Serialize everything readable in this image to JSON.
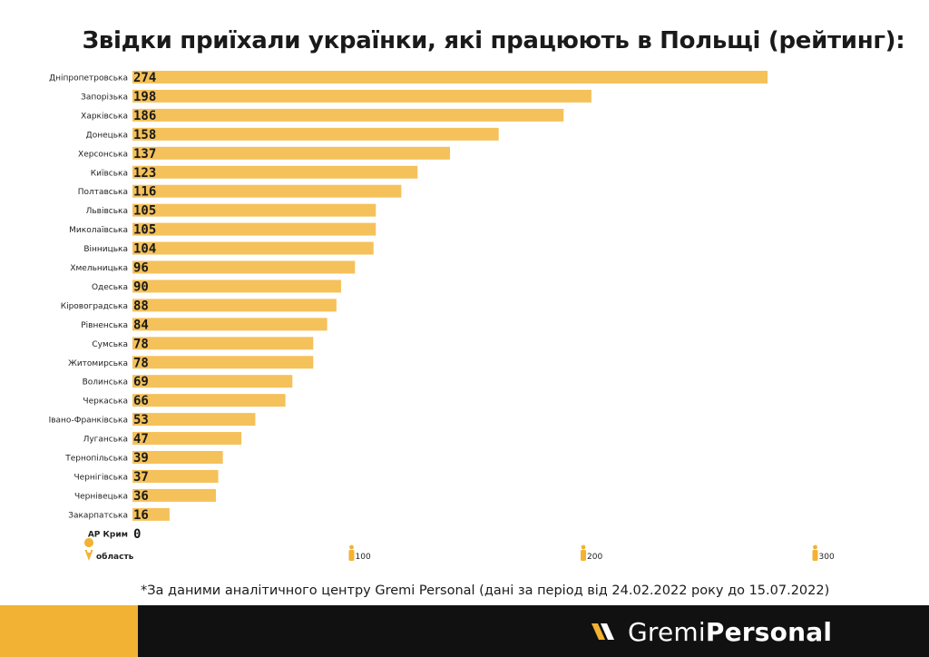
{
  "title": "Звідки приїхали українки, які працюють в Польщі (рейтинг):",
  "chart_data": {
    "type": "bar",
    "orientation": "horizontal",
    "categories": [
      "Дніпропетровська",
      "Запорізька",
      "Харківська",
      "Донецька",
      "Херсонська",
      "Київська",
      "Полтавська",
      "Львівська",
      "Миколаївська",
      "Вінницька",
      "Хмельницька",
      "Одеська",
      "Кіровоградська",
      "Рівненська",
      "Сумська",
      "Житомирська",
      "Волинська",
      "Черкаська",
      "Івано-Франківська",
      "Луганська",
      "Тернопільська",
      "Чернігівська",
      "Чернівецька",
      "Закарпатська",
      "АР Крим"
    ],
    "values": [
      274,
      198,
      186,
      158,
      137,
      123,
      116,
      105,
      105,
      104,
      96,
      90,
      88,
      84,
      78,
      78,
      69,
      66,
      53,
      47,
      39,
      37,
      36,
      16,
      0
    ],
    "xlim": [
      0,
      300
    ],
    "ticks": [
      "100",
      "200",
      "300"
    ],
    "category_axis_label": "область",
    "grid": false,
    "bar_color": "#F5C15A"
  },
  "footnote": "*За даними аналітичного центру Gremi Personal (дані за період від 24.02.2022 року до 15.07.2022)",
  "logo": {
    "part1": "Gremi",
    "part2": "Personal"
  },
  "colors": {
    "accent": "#F2B233",
    "bar": "#F5C15A",
    "footer_bg": "#111111"
  }
}
